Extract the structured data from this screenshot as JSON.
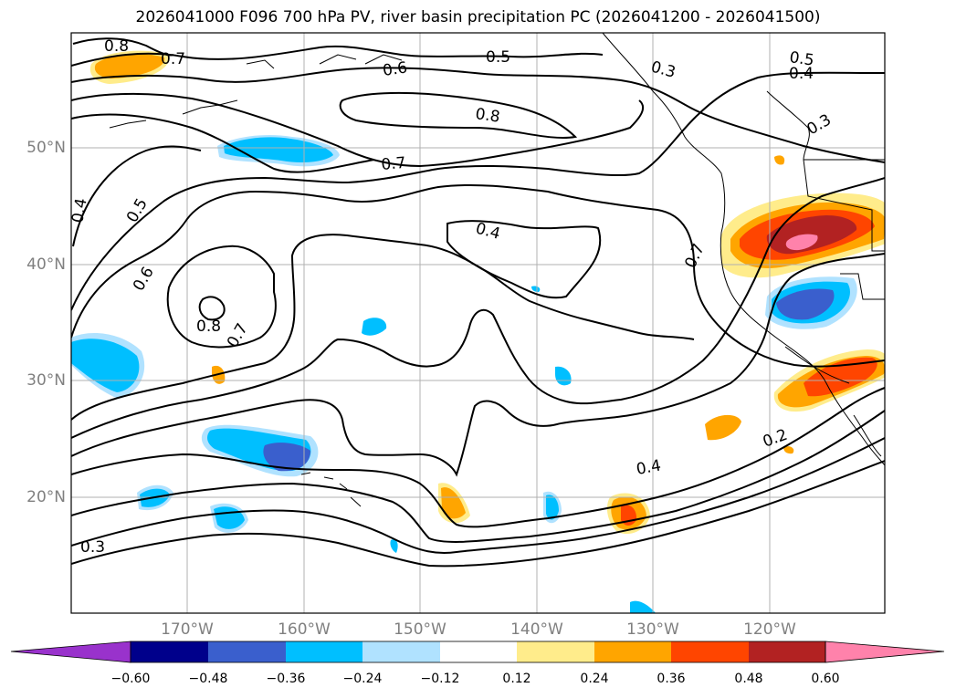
{
  "title": "2026041000 F096 700 hPa PV, river basin precipitation PC (2026041200 - 2026041500)",
  "lat_labels": [
    "50°N",
    "40°N",
    "30°N",
    "20°N"
  ],
  "lon_labels": [
    "170°W",
    "160°W",
    "150°W",
    "140°W",
    "130°W",
    "120°W"
  ],
  "colorbar": {
    "ticks": [
      "−0.60",
      "−0.48",
      "−0.36",
      "−0.24",
      "−0.12",
      "0.12",
      "0.24",
      "0.36",
      "0.48",
      "0.60"
    ],
    "colors": [
      "#9932cc",
      "#00008b",
      "#3a5fcd",
      "#00bfff",
      "#b0e2ff",
      "#ffffff",
      "#ffec8b",
      "#ffa500",
      "#ff4500",
      "#b22222",
      "#ff82ab"
    ]
  },
  "contour_labels": [
    "0.8",
    "0.7",
    "0.6",
    "0.5",
    "0.3",
    "0.5",
    "0.4",
    "0.3",
    "0.8",
    "0.7",
    "0.4",
    "0.5",
    "0.6",
    "0.4",
    "0.7",
    "0.8",
    "0.7",
    "0.4",
    "0.2",
    "0.3"
  ],
  "colors": {
    "land_line": "#000000",
    "grid": "#b0b0b0",
    "contour": "#000000"
  }
}
